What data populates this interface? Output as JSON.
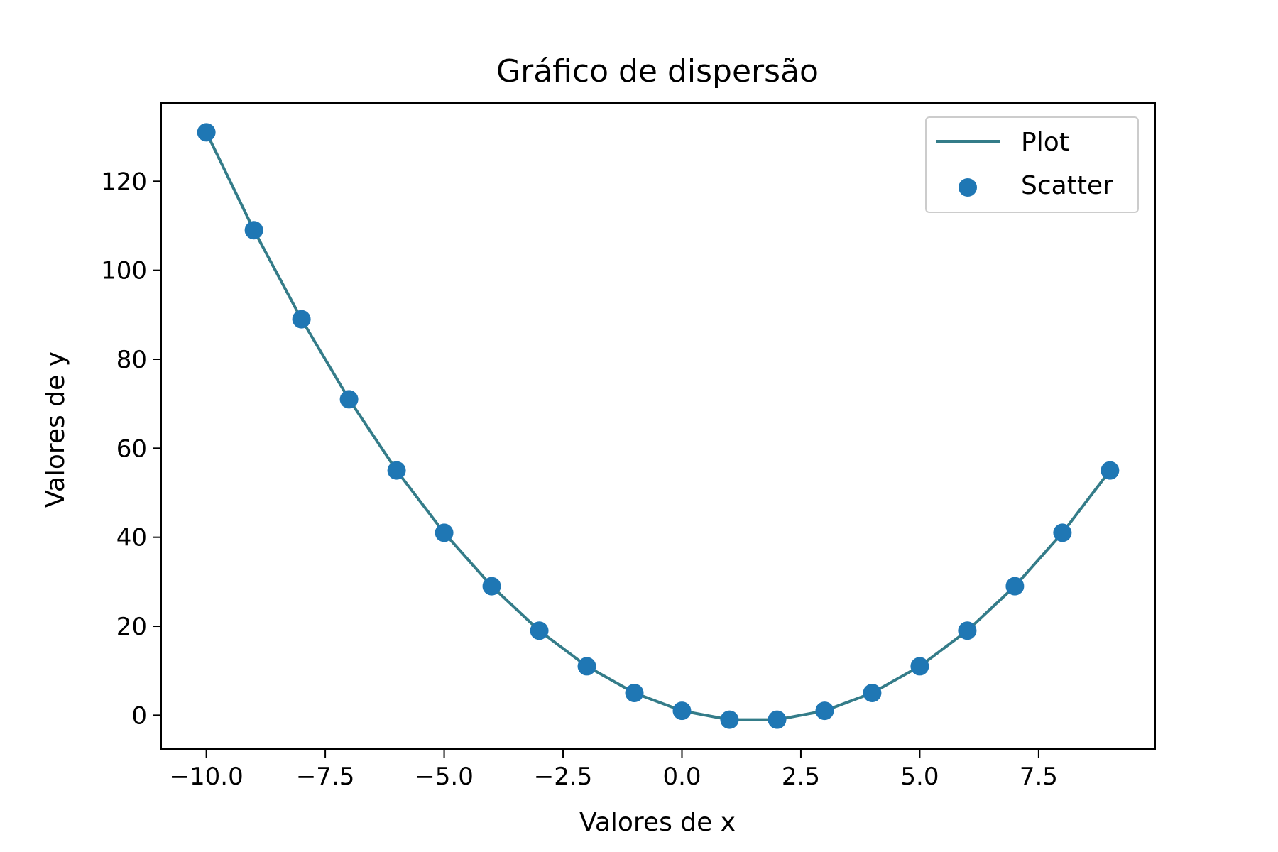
{
  "chart_data": {
    "type": "line",
    "title": "Gráfico de dispersão",
    "xlabel": "Valores de x",
    "ylabel": "Valores de y",
    "xlim": [
      -10.95,
      9.95
    ],
    "ylim": [
      -7.6,
      137.6
    ],
    "xticks": [
      -10.0,
      -7.5,
      -5.0,
      -2.5,
      0.0,
      2.5,
      5.0,
      7.5
    ],
    "xtick_labels": [
      "−10.0",
      "−7.5",
      "−5.0",
      "−2.5",
      "0.0",
      "2.5",
      "5.0",
      "7.5"
    ],
    "yticks": [
      0,
      20,
      40,
      60,
      80,
      100,
      120
    ],
    "ytick_labels": [
      "0",
      "20",
      "40",
      "60",
      "80",
      "100",
      "120"
    ],
    "grid": false,
    "legend_position": "top-right",
    "series": [
      {
        "name": "Plot",
        "kind": "line",
        "color": "#347c89",
        "x": [
          -10,
          -9,
          -8,
          -7,
          -6,
          -5,
          -4,
          -3,
          -2,
          -1,
          0,
          1,
          2,
          3,
          4,
          5,
          6,
          7,
          8,
          9
        ],
        "y": [
          131,
          109,
          89,
          71,
          55,
          41,
          29,
          19,
          11,
          5,
          1,
          -1,
          -1,
          1,
          5,
          11,
          19,
          29,
          41,
          55
        ]
      },
      {
        "name": "Scatter",
        "kind": "scatter",
        "color": "#1f77b4",
        "x": [
          -10,
          -9,
          -8,
          -7,
          -6,
          -5,
          -4,
          -3,
          -2,
          -1,
          0,
          1,
          2,
          3,
          4,
          5,
          6,
          7,
          8,
          9
        ],
        "y": [
          131,
          109,
          89,
          71,
          55,
          41,
          29,
          19,
          11,
          5,
          1,
          -1,
          -1,
          1,
          5,
          11,
          19,
          29,
          41,
          55
        ]
      }
    ]
  }
}
